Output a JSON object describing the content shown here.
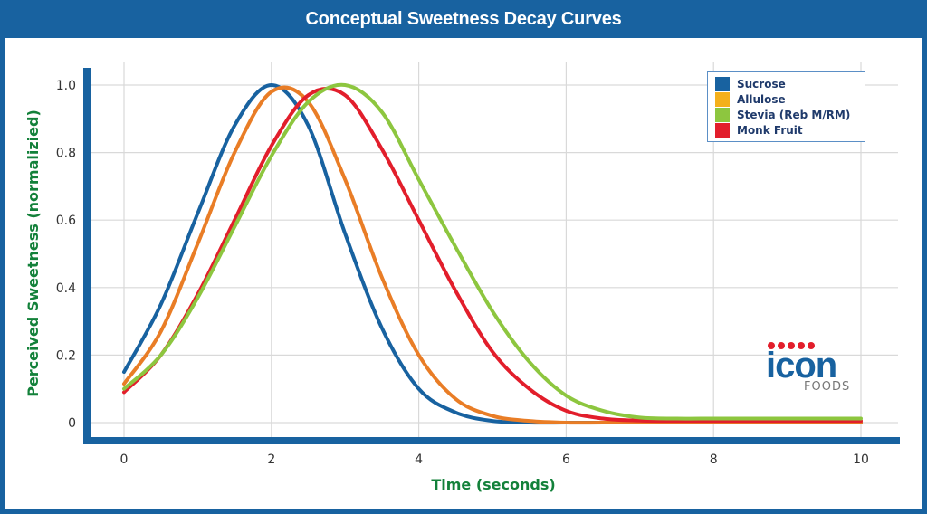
{
  "title": "Conceptual Sweetness Decay Curves",
  "logo": {
    "word": "icon",
    "sub": "FOODS",
    "dot_color": "#e21e2b",
    "word_color": "#1862a0"
  },
  "colors": {
    "frame": "#1862a0",
    "axis_title": "#13813a",
    "grid": "#d9d9d9"
  },
  "chart_data": {
    "type": "line",
    "title": "Conceptual Sweetness Decay Curves",
    "xlabel": "Time (seconds)",
    "ylabel": "Perceived Sweetness (normalizied)",
    "xlim": [
      0,
      10
    ],
    "ylim": [
      0,
      1.0
    ],
    "xticks": [
      0,
      2,
      4,
      6,
      8,
      10
    ],
    "xtick_labels": [
      "0",
      "2",
      "4",
      "6",
      "8",
      "10"
    ],
    "yticks": [
      0,
      0.2,
      0.4,
      0.6,
      0.8,
      1.0
    ],
    "ytick_labels": [
      "0",
      "0.2",
      "0.4",
      "0.6",
      "0.8",
      "1.0"
    ],
    "grid": true,
    "legend_position": "top-right",
    "x": [
      0,
      0.5,
      1.0,
      1.5,
      2.0,
      2.5,
      3.0,
      3.5,
      4.0,
      4.5,
      5.0,
      5.5,
      6.0,
      6.5,
      7.0,
      7.5,
      8.0,
      8.5,
      9.0,
      9.5,
      10.0
    ],
    "series": [
      {
        "name": "Sucrose",
        "color": "#1862a0",
        "values": [
          0.15,
          0.35,
          0.62,
          0.88,
          1.0,
          0.88,
          0.56,
          0.28,
          0.1,
          0.03,
          0.005,
          0,
          0,
          0,
          0,
          0,
          0,
          0,
          0,
          0,
          0
        ]
      },
      {
        "name": "Allulose",
        "color": "#e97d26",
        "legend_color": "#f4b01b",
        "values": [
          0.115,
          0.27,
          0.53,
          0.8,
          0.98,
          0.95,
          0.72,
          0.43,
          0.2,
          0.07,
          0.02,
          0.005,
          0,
          0,
          0,
          0,
          0,
          0,
          0,
          0,
          0
        ]
      },
      {
        "name": "Stevia (Reb M/RM)",
        "color": "#8dc63f",
        "values": [
          0.1,
          0.2,
          0.37,
          0.58,
          0.79,
          0.95,
          1.0,
          0.92,
          0.72,
          0.52,
          0.33,
          0.18,
          0.08,
          0.035,
          0.015,
          0.012,
          0.012,
          0.012,
          0.012,
          0.012,
          0.012
        ]
      },
      {
        "name": "Monk Fruit",
        "color": "#e21e2b",
        "values": [
          0.09,
          0.2,
          0.38,
          0.6,
          0.82,
          0.97,
          0.97,
          0.81,
          0.6,
          0.39,
          0.21,
          0.1,
          0.035,
          0.012,
          0.006,
          0.005,
          0.005,
          0.005,
          0.005,
          0.005,
          0.005
        ]
      }
    ]
  }
}
